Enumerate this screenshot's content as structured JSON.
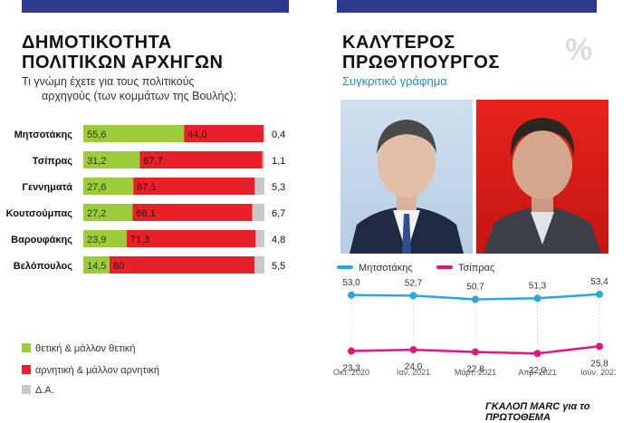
{
  "left": {
    "title_line1": "ΔΗΜΟΤΙΚΟΤΗΤΑ",
    "title_line2": "ΠΟΛΙΤΙΚΩΝ ΑΡΧΗΓΩΝ",
    "subtitle_line1": "Τι γνώμη έχετε για τους πολιτικούς",
    "subtitle_line2": "αρχηγούς (των κομμάτων της Βουλής);"
  },
  "right": {
    "title_line1": "ΚΑΛΥΤΕΡΟΣ",
    "title_line2": "ΠΡΩΘΥΠΟΥΡΓΟΣ",
    "subtitle": "Συγκριτικό γράφημα",
    "percent_symbol": "%"
  },
  "legend": {
    "positive": "θετική & μάλλον θετική",
    "negative": "αρνητική & μάλλον αρνητική",
    "dk": "Δ.Α."
  },
  "source": "ΓΚΑΛΟΠ MARC για το ΠΡΩΤΟΘΕΜΑ",
  "colors": {
    "positive": "#9ccc3a",
    "negative": "#e8202a",
    "dk": "#c8c8c8",
    "mitsotakis": "#29a9e0",
    "tsipras": "#e5157f",
    "header_bar": "#2b3a8f"
  },
  "chart_data": [
    {
      "type": "bar",
      "stacked": true,
      "orientation": "horizontal",
      "categories": [
        "Μητσοτάκης",
        "Τσίπρας",
        "Γεννηματά",
        "Κουτσούμπας",
        "Βαρουφάκης",
        "Βελόπουλος"
      ],
      "series": [
        {
          "name": "θετική & μάλλον θετική",
          "values": [
            55.6,
            31.2,
            27.6,
            27.2,
            23.9,
            14.5
          ],
          "labels": [
            "55,6",
            "31,2",
            "27,6",
            "27,2",
            "23,9",
            "14,5"
          ]
        },
        {
          "name": "αρνητική & μάλλον αρνητική",
          "values": [
            44.0,
            67.7,
            67.1,
            66.1,
            71.3,
            80
          ],
          "labels": [
            "44,0",
            "67,7",
            "67,1",
            "66,1",
            "71,3",
            "80"
          ]
        },
        {
          "name": "Δ.Α.",
          "values": [
            0.4,
            1.1,
            5.3,
            6.7,
            4.8,
            5.5
          ],
          "labels": [
            "0,4",
            "1,1",
            "5,3",
            "6,7",
            "4,8",
            "5,5"
          ]
        }
      ],
      "xlim": [
        0,
        100
      ],
      "legend": "bottom"
    },
    {
      "type": "line",
      "x": [
        "Οκτ. 2020",
        "Ιαν. 2021",
        "Μάρτ. 2021",
        "Απρ. 2021",
        "Ιούν. 2021"
      ],
      "series": [
        {
          "name": "Μητσοτάκης",
          "values": [
            53.0,
            52.7,
            50.7,
            51.3,
            53.4
          ],
          "labels": [
            "53,0",
            "52,7",
            "50,7",
            "51,3",
            "53,4"
          ]
        },
        {
          "name": "Τσίπρας",
          "values": [
            23.3,
            24.0,
            22.8,
            22.0,
            25.8
          ],
          "labels": [
            "23,3",
            "24,0",
            "22,8",
            "22,0",
            "25,8"
          ]
        }
      ],
      "legend": "top-left",
      "grid": true
    }
  ]
}
